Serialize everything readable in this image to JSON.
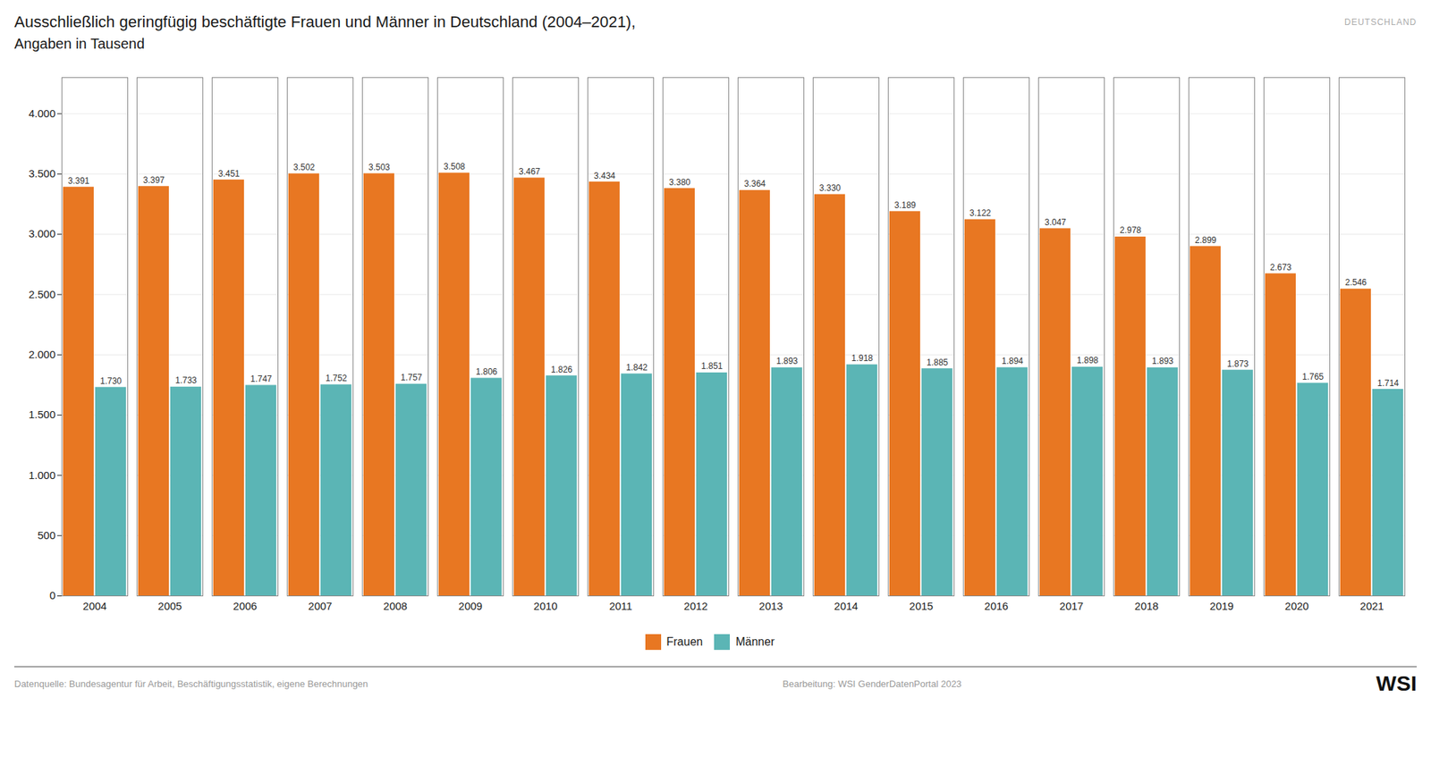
{
  "chart_data": {
    "type": "bar",
    "title": "Ausschließlich geringfügig beschäftigte Frauen und Männer in Deutschland (2004–2021),",
    "subtitle": "Angaben in Tausend",
    "categories": [
      "2004",
      "2005",
      "2006",
      "2007",
      "2008",
      "2009",
      "2010",
      "2011",
      "2012",
      "2013",
      "2014",
      "2015",
      "2016",
      "2017",
      "2018",
      "2019",
      "2020",
      "2021"
    ],
    "series": [
      {
        "name": "Frauen",
        "color": "#E87722",
        "values": [
          3391,
          3397,
          3451,
          3502,
          3503,
          3508,
          3467,
          3434,
          3380,
          3364,
          3330,
          3189,
          3122,
          3047,
          2978,
          2899,
          2673,
          2546
        ],
        "value_labels": [
          "3.391",
          "3.397",
          "3.451",
          "3.502",
          "3.503",
          "3.508",
          "3.467",
          "3.434",
          "3.380",
          "3.364",
          "3.330",
          "3.189",
          "3.122",
          "3.047",
          "2.978",
          "2.899",
          "2.673",
          "2.546"
        ]
      },
      {
        "name": "Männer",
        "color": "#5BB5B5",
        "values": [
          1730,
          1733,
          1747,
          1752,
          1757,
          1806,
          1826,
          1842,
          1851,
          1893,
          1918,
          1885,
          1894,
          1898,
          1893,
          1873,
          1765,
          1714
        ],
        "value_labels": [
          "1.730",
          "1.733",
          "1.747",
          "1.752",
          "1.757",
          "1.806",
          "1.826",
          "1.842",
          "1.851",
          "1.893",
          "1.918",
          "1.885",
          "1.894",
          "1.898",
          "1.893",
          "1.873",
          "1.765",
          "1.714"
        ]
      }
    ],
    "ylim": [
      0,
      4300
    ],
    "yticks": [
      0,
      500,
      {
        "value": 1000,
        "label": "1.000"
      },
      {
        "value": 1500,
        "label": "1.500"
      },
      {
        "value": 2000,
        "label": "2.000"
      },
      {
        "value": 2500,
        "label": "2.500"
      },
      {
        "value": 3000,
        "label": "3.000"
      },
      {
        "value": 3500,
        "label": "3.500"
      },
      {
        "value": 4000,
        "label": "4.000"
      }
    ],
    "grid": true,
    "legend": "bottom",
    "data_labels": true,
    "annotations": [
      "DEUTSCHLAND",
      "Datenquelle: Bundesagentur für Arbeit, Beschäftigungsstatistik, eigene Berechnungen",
      "Bearbeitung: WSI GenderDatenPortal 2023",
      "WSI"
    ]
  }
}
